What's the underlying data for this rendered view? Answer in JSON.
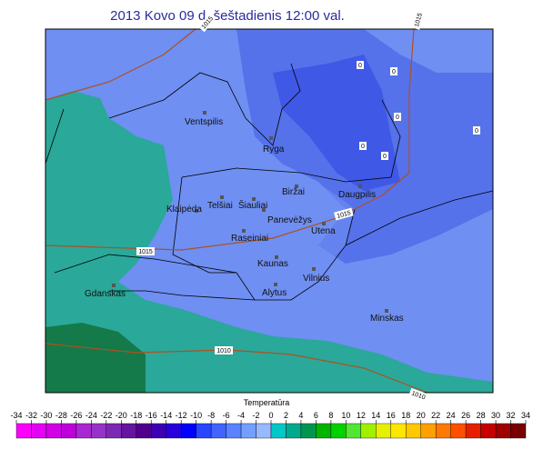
{
  "title": "2013  Kovo  09 d.  šeštadienis     12:00 val.",
  "cities": [
    "Ventspilis",
    "Ryga",
    "Biržai",
    "Daugpilis",
    "Telšiai",
    "Šiauliai",
    "Klaipėda",
    "Panevėžys",
    "Utena",
    "Raseiniai",
    "Kaunas",
    "Vilnius",
    "Alytus",
    "Gdanskas",
    "Minskas"
  ],
  "isobar_labels": [
    "1015",
    "1015",
    "1015",
    "1015",
    "1010",
    "1010"
  ],
  "map_labels": [
    "0",
    "0",
    "0",
    "0",
    "0",
    "0"
  ],
  "legend": {
    "title": "Temperatūra",
    "ticks": [
      -34,
      -32,
      -30,
      -28,
      -26,
      -24,
      -22,
      -20,
      -18,
      -16,
      -14,
      -12,
      -10,
      -8,
      -6,
      -4,
      -2,
      0,
      2,
      4,
      6,
      8,
      10,
      12,
      14,
      16,
      18,
      20,
      22,
      24,
      26,
      28,
      30,
      32,
      34
    ],
    "colors": [
      "#ff00ff",
      "#e600f5",
      "#d200e6",
      "#be00dc",
      "#aa28d2",
      "#9632c8",
      "#7d28b4",
      "#6414a0",
      "#50008c",
      "#3c00b4",
      "#2800dc",
      "#0000ff",
      "#2846ff",
      "#4164ff",
      "#5a82ff",
      "#73a0ff",
      "#96b9ff",
      "#00c8c8",
      "#00aa8c",
      "#009650",
      "#00b400",
      "#00d200",
      "#50e632",
      "#a0f000",
      "#e6f000",
      "#ffe600",
      "#ffc800",
      "#ffa000",
      "#ff7800",
      "#ff5000",
      "#e61e00",
      "#c80000",
      "#a00000",
      "#780000"
    ]
  }
}
